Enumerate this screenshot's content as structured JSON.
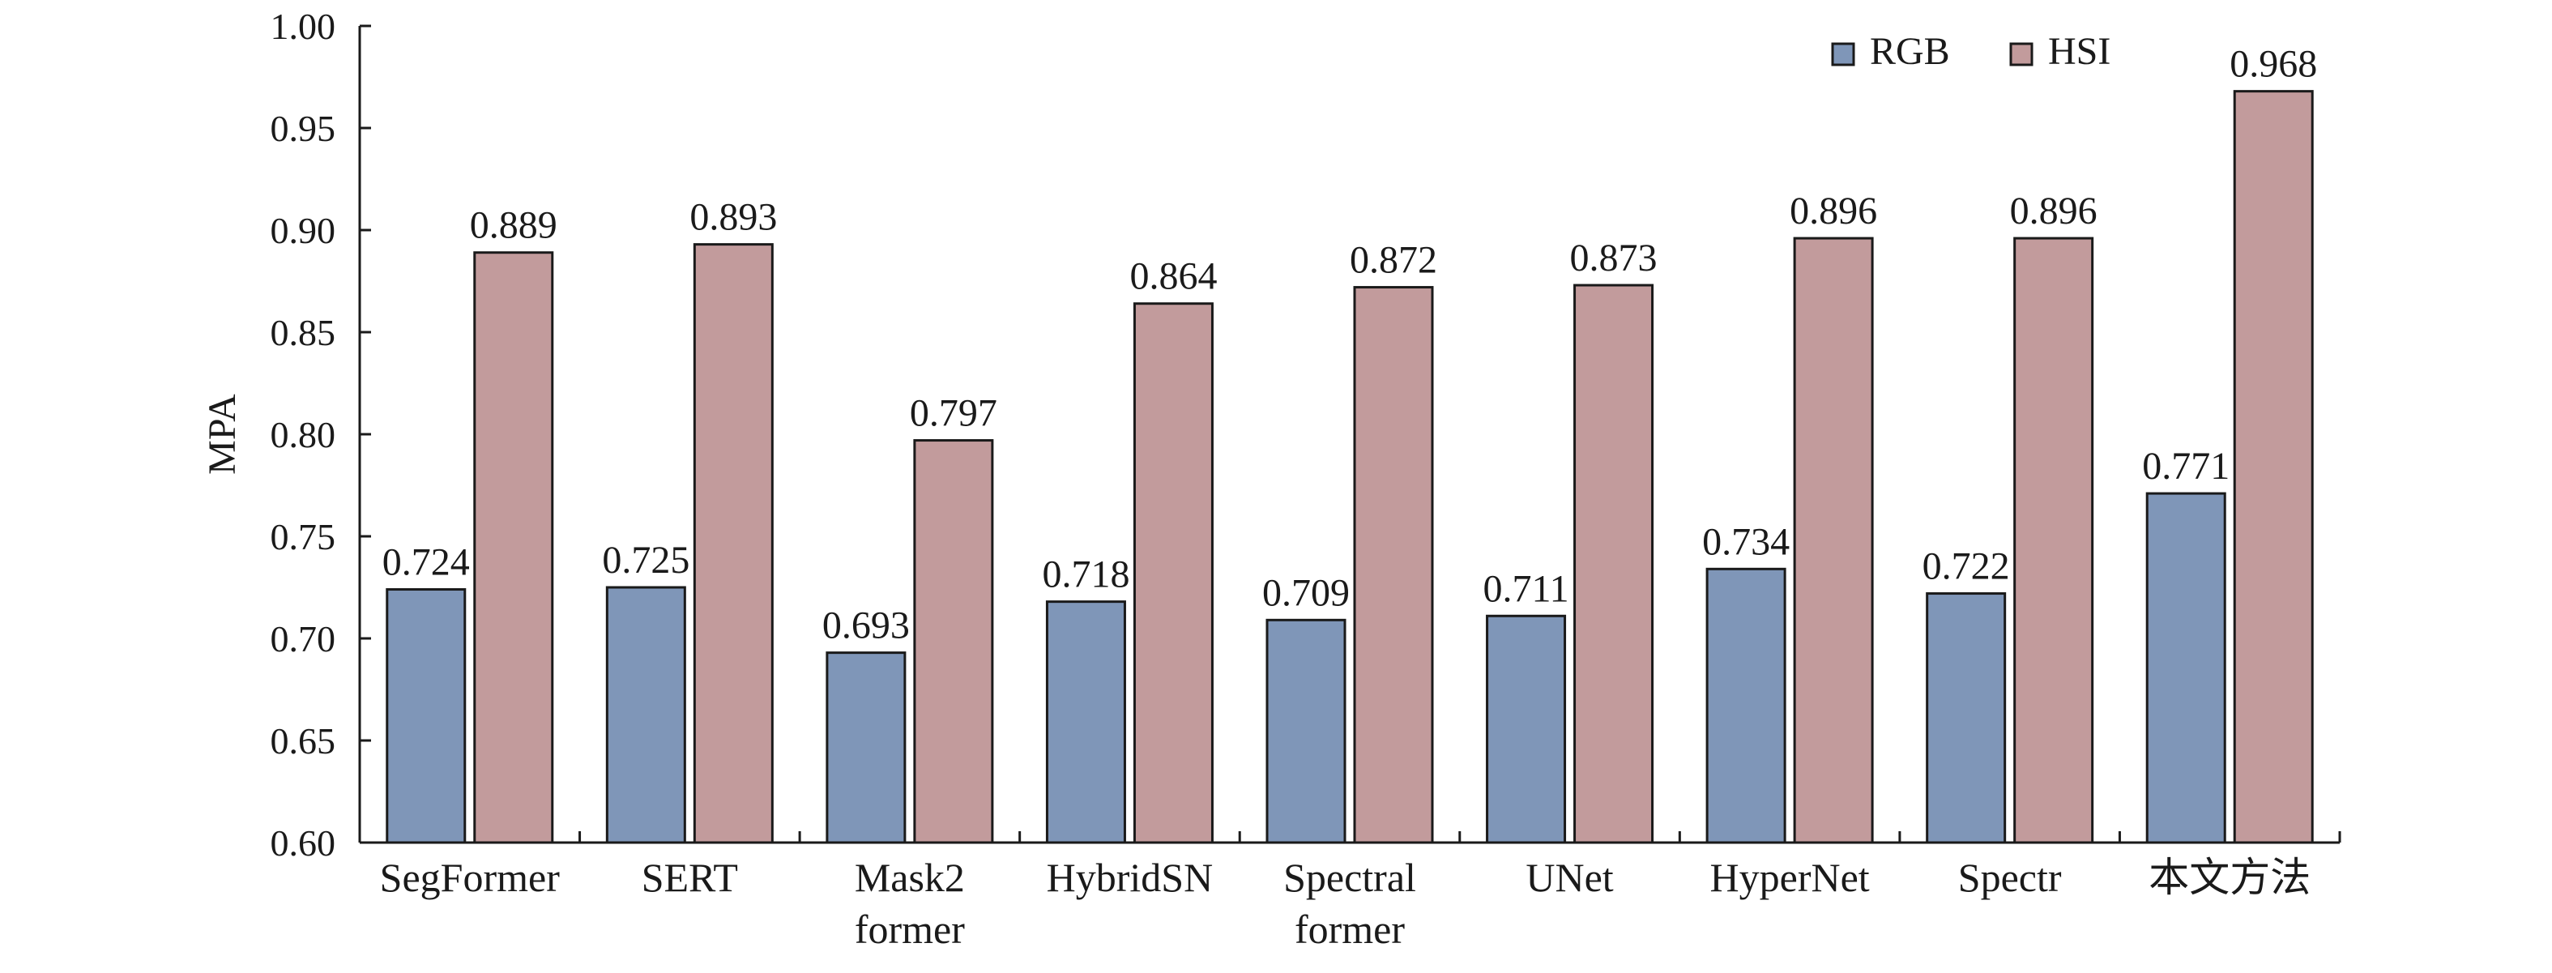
{
  "chart_data": {
    "type": "bar",
    "title": "",
    "xlabel": "",
    "ylabel": "MPA",
    "ylim": [
      0.6,
      1.0
    ],
    "yticks": [
      "0.60",
      "0.65",
      "0.70",
      "0.75",
      "0.80",
      "0.85",
      "0.90",
      "0.95",
      "1.00"
    ],
    "grid": false,
    "legend_position": "top-right",
    "categories": [
      [
        "SegFormer"
      ],
      [
        "SERT"
      ],
      [
        "Mask2",
        "former"
      ],
      [
        "HybridSN"
      ],
      [
        "Spectral",
        "former"
      ],
      [
        "UNet"
      ],
      [
        "HyperNet"
      ],
      [
        "Spectr"
      ],
      [
        "本文方法"
      ]
    ],
    "series": [
      {
        "name": "RGB",
        "color": "#7f96b8",
        "values": [
          0.724,
          0.725,
          0.693,
          0.718,
          0.709,
          0.711,
          0.734,
          0.722,
          0.771
        ],
        "labels": [
          "0.724",
          "0.725",
          "0.693",
          "0.718",
          "0.709",
          "0.711",
          "0.734",
          "0.722",
          "0.771"
        ]
      },
      {
        "name": "HSI",
        "color": "#c29b9c",
        "values": [
          0.889,
          0.893,
          0.797,
          0.864,
          0.872,
          0.873,
          0.896,
          0.896,
          0.968
        ],
        "labels": [
          "0.889",
          "0.893",
          "0.797",
          "0.864",
          "0.872",
          "0.873",
          "0.896",
          "0.896",
          "0.968"
        ]
      }
    ]
  }
}
